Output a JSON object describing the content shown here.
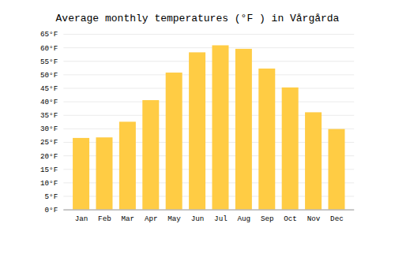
{
  "chart_data": {
    "type": "bar",
    "title": "Average monthly temperatures (°F ) in Vårgårda",
    "categories": [
      "Jan",
      "Feb",
      "Mar",
      "Apr",
      "May",
      "Jun",
      "Jul",
      "Aug",
      "Sep",
      "Oct",
      "Nov",
      "Dec"
    ],
    "values": [
      26.5,
      26.7,
      32.5,
      40.5,
      50.7,
      58.2,
      60.8,
      59.5,
      52.2,
      45.2,
      36.0,
      29.8
    ],
    "color": "#FFCC44",
    "ylim": [
      0,
      65
    ],
    "yticks": [
      {
        "value": 0,
        "label": "0°F"
      },
      {
        "value": 5,
        "label": "5°F"
      },
      {
        "value": 10,
        "label": "10°F"
      },
      {
        "value": 15,
        "label": "15°F"
      },
      {
        "value": 20,
        "label": "20°F"
      },
      {
        "value": 25,
        "label": "25°F"
      },
      {
        "value": 30,
        "label": "30°F"
      },
      {
        "value": 35,
        "label": "35°F"
      },
      {
        "value": 40,
        "label": "40°F"
      },
      {
        "value": 45,
        "label": "45°F"
      },
      {
        "value": 50,
        "label": "50°F"
      },
      {
        "value": 55,
        "label": "55°F"
      },
      {
        "value": 60,
        "label": "60°F"
      },
      {
        "value": 65,
        "label": "65°F"
      }
    ],
    "grid": true
  }
}
